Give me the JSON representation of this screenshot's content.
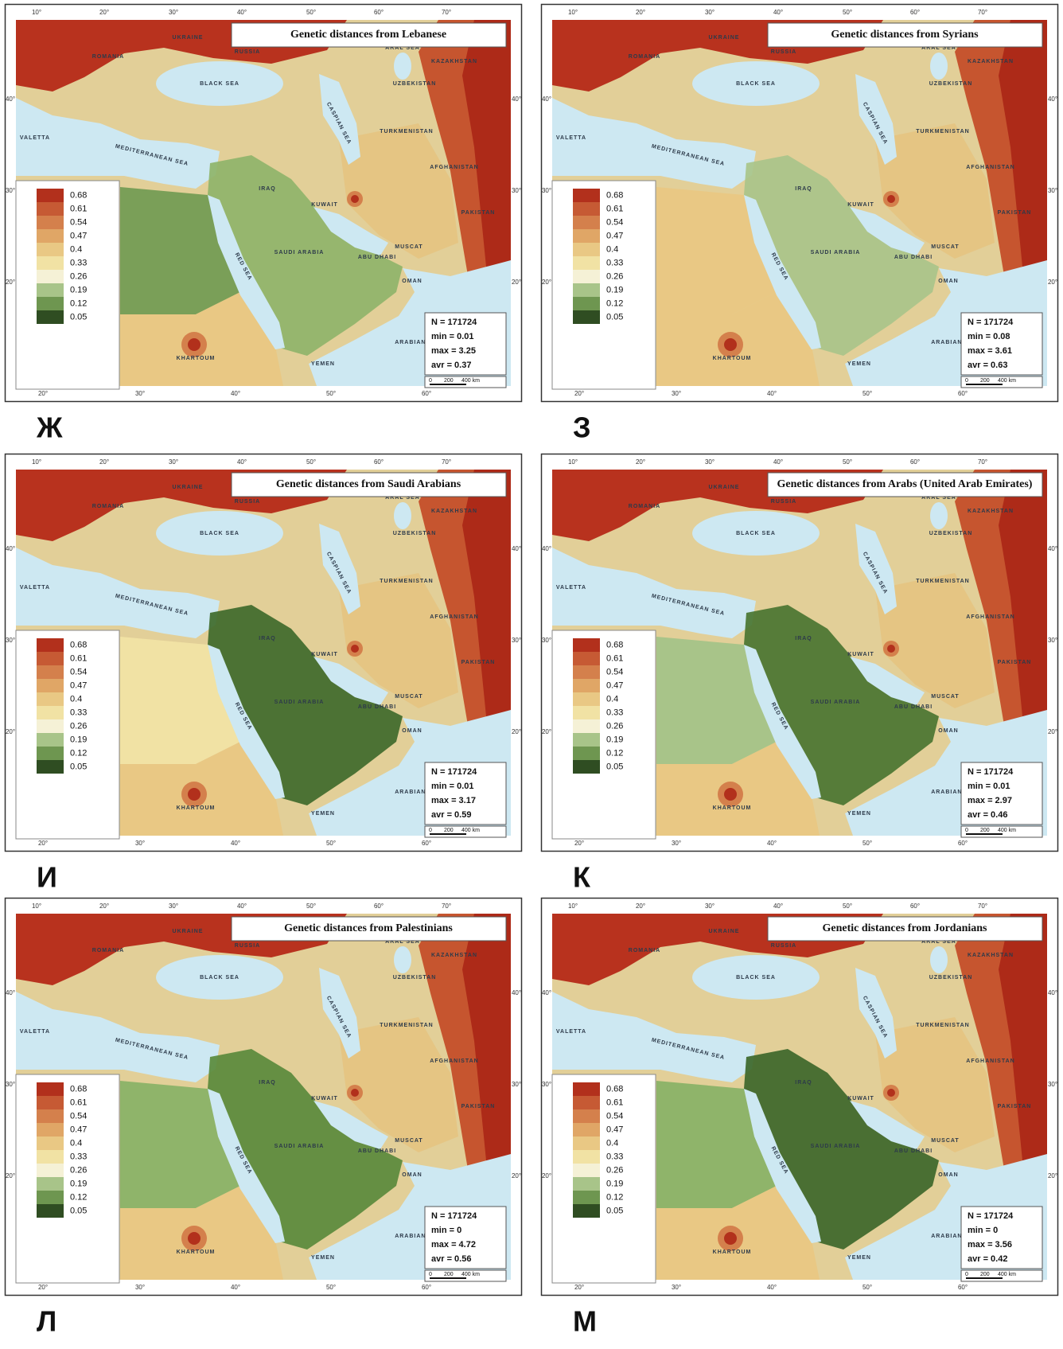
{
  "legend": {
    "levels": [
      "0.68",
      "0.61",
      "0.54",
      "0.47",
      "0.4",
      "0.33",
      "0.26",
      "0.19",
      "0.12",
      "0.05"
    ]
  },
  "graticule": {
    "top": [
      "10°",
      "20°",
      "30°",
      "40°",
      "50°",
      "60°",
      "70°"
    ],
    "bottom": [
      "20°",
      "30°",
      "40°",
      "50°",
      "60°"
    ],
    "left": [
      "40°",
      "30°",
      "20°"
    ],
    "right": [
      "40°",
      "30°",
      "20°"
    ]
  },
  "map_labels": [
    "BLACK SEA",
    "MEDITERRANEAN SEA",
    "ARABIAN SEA",
    "SAUDI ARABIA",
    "IRAQ",
    "KAZAKHSTAN",
    "UZBEKISTAN",
    "TURKMENISTAN",
    "AFGHANISTAN",
    "PAKISTAN",
    "UKRAINE",
    "RUSSIA",
    "ROMANIA",
    "ARAL SEA",
    "CASPIAN SEA",
    "RED SEA",
    "OMAN",
    "YEMEN",
    "VALETTA",
    "KHARTOUM",
    "KUWAIT",
    "MUSCAT",
    "ABU DHABI"
  ],
  "scale_bar": [
    "0",
    "200",
    "400 km"
  ],
  "panels": [
    {
      "letter": "Ж",
      "title": "Genetic distances from Lebanese",
      "stats": [
        "N = 171724",
        "min = 0.01",
        "max = 3.25",
        "avr = 0.37"
      ]
    },
    {
      "letter": "З",
      "title": "Genetic distances from Syrians",
      "stats": [
        "N = 171724",
        "min = 0.08",
        "max = 3.61",
        "avr = 0.63"
      ]
    },
    {
      "letter": "И",
      "title": "Genetic distances from Saudi Arabians",
      "stats": [
        "N = 171724",
        "min = 0.01",
        "max = 3.17",
        "avr = 0.59"
      ]
    },
    {
      "letter": "К",
      "title": "Genetic distances from Arabs (United Arab Emirates)",
      "stats": [
        "N = 171724",
        "min = 0.01",
        "max = 2.97",
        "avr = 0.46"
      ]
    },
    {
      "letter": "Л",
      "title": "Genetic distances from Palestinians",
      "stats": [
        "N = 171724",
        "min = 0",
        "max = 4.72",
        "avr = 0.56"
      ]
    },
    {
      "letter": "М",
      "title": "Genetic distances from Jordanians",
      "stats": [
        "N = 171724",
        "min = 0",
        "max = 3.56",
        "avr = 0.42"
      ]
    }
  ]
}
